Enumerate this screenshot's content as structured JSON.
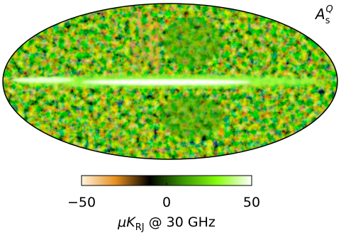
{
  "chart_data": {
    "type": "map",
    "map_label": {
      "base": "A",
      "sub": "s",
      "sup": "Q"
    },
    "colorbar": {
      "lim": [
        -50,
        50
      ],
      "ticks": [
        {
          "value": -50,
          "label": "−50"
        },
        0,
        50
      ],
      "label": {
        "base": "μK",
        "sub": "RJ",
        "rest": "@ 30 GHz"
      },
      "colors": [
        "#fff4e0",
        "#e8901e",
        "#000000",
        "#3a9a00",
        "#88ff10",
        "#ffffff"
      ]
    }
  }
}
